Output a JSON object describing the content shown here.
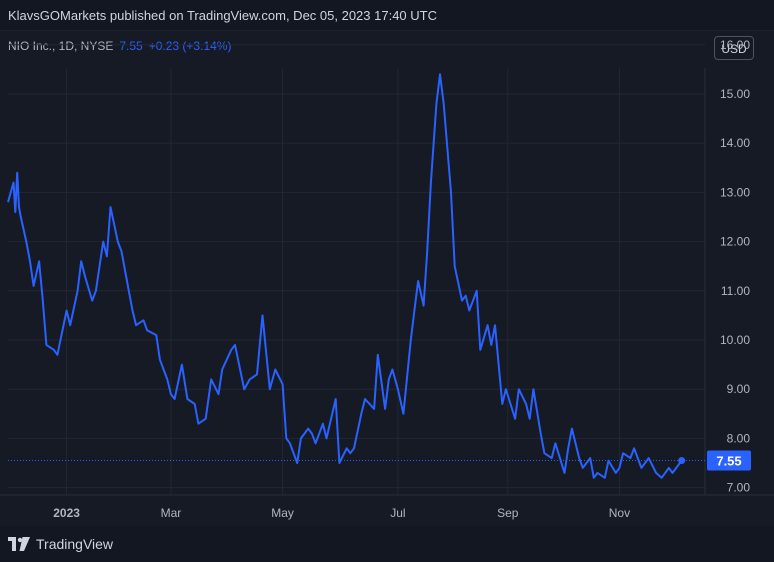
{
  "header": {
    "publisher_line": "KlavsGOMarkets published on TradingView.com, Dec 05, 2023 17:40 UTC"
  },
  "legend": {
    "symbol": "NIO Inc., 1D, NYSE",
    "last": "7.55",
    "change": "+0.23 (+3.14%)"
  },
  "controls": {
    "currency": "USD"
  },
  "footer": {
    "brand": "TradingView"
  },
  "colors": {
    "line": "#2962ff",
    "background": "#161a25",
    "grid": "#232734",
    "label_bg": "#2962ff"
  },
  "chart_data": {
    "type": "line",
    "title": "",
    "xlabel": "",
    "ylabel": "",
    "ylim": [
      6.85,
      16.3
    ],
    "y_ticks": [
      "16.00",
      "15.00",
      "14.00",
      "13.00",
      "12.00",
      "11.00",
      "10.00",
      "9.00",
      "8.00",
      "7.00"
    ],
    "x_ticks": [
      "2023",
      "Mar",
      "May",
      "Jul",
      "Sep",
      "Nov"
    ],
    "x_tick_dates": [
      "2023-01-03",
      "2023-03-01",
      "2023-05-01",
      "2023-07-03",
      "2023-09-01",
      "2023-11-01"
    ],
    "x_range": [
      "2022-12-02",
      "2023-12-15"
    ],
    "last_value": 7.55,
    "last_label": "7.55",
    "grid": true,
    "series": [
      {
        "x": [
          "2022-12-02",
          "2022-12-05",
          "2022-12-06",
          "2022-12-07",
          "2022-12-08",
          "2022-12-09",
          "2022-12-12",
          "2022-12-14",
          "2022-12-16",
          "2022-12-19",
          "2022-12-21",
          "2022-12-23",
          "2022-12-27",
          "2022-12-29",
          "2023-01-03",
          "2023-01-05",
          "2023-01-09",
          "2023-01-11",
          "2023-01-13",
          "2023-01-17",
          "2023-01-19",
          "2023-01-23",
          "2023-01-25",
          "2023-01-27",
          "2023-01-31",
          "2023-02-02",
          "2023-02-06",
          "2023-02-08",
          "2023-02-10",
          "2023-02-14",
          "2023-02-16",
          "2023-02-21",
          "2023-02-23",
          "2023-02-27",
          "2023-03-01",
          "2023-03-03",
          "2023-03-07",
          "2023-03-10",
          "2023-03-14",
          "2023-03-16",
          "2023-03-20",
          "2023-03-23",
          "2023-03-27",
          "2023-03-29",
          "2023-04-03",
          "2023-04-05",
          "2023-04-10",
          "2023-04-13",
          "2023-04-17",
          "2023-04-20",
          "2023-04-24",
          "2023-04-27",
          "2023-05-01",
          "2023-05-03",
          "2023-05-05",
          "2023-05-09",
          "2023-05-11",
          "2023-05-15",
          "2023-05-17",
          "2023-05-19",
          "2023-05-23",
          "2023-05-25",
          "2023-05-30",
          "2023-06-01",
          "2023-06-05",
          "2023-06-07",
          "2023-06-09",
          "2023-06-13",
          "2023-06-15",
          "2023-06-20",
          "2023-06-22",
          "2023-06-26",
          "2023-06-28",
          "2023-06-30",
          "2023-07-03",
          "2023-07-06",
          "2023-07-10",
          "2023-07-12",
          "2023-07-14",
          "2023-07-17",
          "2023-07-19",
          "2023-07-21",
          "2023-07-24",
          "2023-07-26",
          "2023-07-28",
          "2023-08-01",
          "2023-08-03",
          "2023-08-07",
          "2023-08-09",
          "2023-08-11",
          "2023-08-15",
          "2023-08-17",
          "2023-08-21",
          "2023-08-23",
          "2023-08-25",
          "2023-08-29",
          "2023-08-31",
          "2023-09-05",
          "2023-09-07",
          "2023-09-11",
          "2023-09-13",
          "2023-09-15",
          "2023-09-19",
          "2023-09-21",
          "2023-09-25",
          "2023-09-27",
          "2023-10-02",
          "2023-10-04",
          "2023-10-06",
          "2023-10-10",
          "2023-10-12",
          "2023-10-16",
          "2023-10-18",
          "2023-10-20",
          "2023-10-24",
          "2023-10-26",
          "2023-10-30",
          "2023-11-01",
          "2023-11-03",
          "2023-11-07",
          "2023-11-09",
          "2023-11-13",
          "2023-11-15",
          "2023-11-17",
          "2023-11-21",
          "2023-11-24",
          "2023-11-28",
          "2023-11-30",
          "2023-12-04",
          "2023-12-05"
        ],
        "y": [
          12.8,
          13.2,
          12.6,
          13.4,
          12.7,
          12.5,
          12.0,
          11.6,
          11.1,
          11.6,
          10.8,
          9.9,
          9.8,
          9.7,
          10.6,
          10.3,
          11.0,
          11.6,
          11.3,
          10.8,
          11.0,
          12.0,
          11.7,
          12.7,
          12.0,
          11.8,
          11.0,
          10.6,
          10.3,
          10.4,
          10.2,
          10.1,
          9.6,
          9.2,
          8.9,
          8.8,
          9.5,
          8.8,
          8.7,
          8.3,
          8.4,
          9.2,
          8.9,
          9.4,
          9.8,
          9.9,
          9.0,
          9.2,
          9.3,
          10.5,
          9.0,
          9.4,
          9.1,
          8.0,
          7.9,
          7.5,
          8.0,
          8.2,
          8.1,
          7.9,
          8.3,
          8.0,
          8.8,
          7.5,
          7.8,
          7.7,
          7.8,
          8.5,
          8.8,
          8.6,
          9.7,
          8.6,
          9.2,
          9.4,
          9.0,
          8.5,
          10.0,
          10.6,
          11.2,
          10.7,
          11.8,
          13.2,
          14.8,
          15.4,
          14.8,
          13.0,
          11.5,
          10.8,
          10.9,
          10.6,
          11.0,
          9.8,
          10.3,
          9.9,
          10.3,
          8.7,
          9.0,
          8.4,
          9.0,
          8.7,
          8.4,
          9.0,
          8.1,
          7.7,
          7.6,
          7.9,
          7.3,
          7.8,
          8.2,
          7.6,
          7.4,
          7.6,
          7.2,
          7.3,
          7.2,
          7.55,
          7.3,
          7.4,
          7.7,
          7.6,
          7.8,
          7.4,
          7.5,
          7.6,
          7.3,
          7.2,
          7.4,
          7.3,
          7.5,
          7.55
        ]
      }
    ]
  }
}
